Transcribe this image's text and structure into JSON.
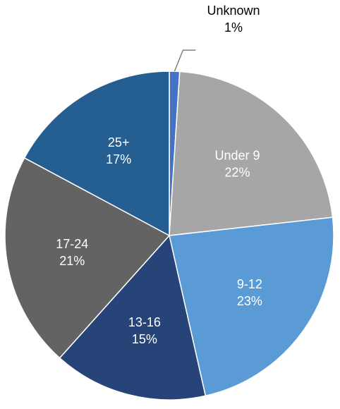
{
  "chart_data": {
    "type": "pie",
    "title": "",
    "start_angle_deg": 0,
    "direction": "clockwise",
    "slices": [
      {
        "label": "Unknown",
        "value": 1,
        "value_label": "1%",
        "color": "#4472C4",
        "label_placement": "outside-leader",
        "label_color": "#000000"
      },
      {
        "label": "Under 9",
        "value": 22,
        "value_label": "22%",
        "color": "#A6A6A6",
        "label_placement": "inside",
        "label_color": "#FFFFFF"
      },
      {
        "label": "9-12",
        "value": 23,
        "value_label": "23%",
        "color": "#5B9BD5",
        "label_placement": "inside",
        "label_color": "#FFFFFF"
      },
      {
        "label": "13-16",
        "value": 15,
        "value_label": "15%",
        "color": "#264478",
        "label_placement": "inside",
        "label_color": "#FFFFFF"
      },
      {
        "label": "17-24",
        "value": 21,
        "value_label": "21%",
        "color": "#636363",
        "label_placement": "inside",
        "label_color": "#FFFFFF"
      },
      {
        "label": "25+",
        "value": 17,
        "value_label": "17%",
        "color": "#255E91",
        "label_placement": "inside",
        "label_color": "#FFFFFF"
      }
    ],
    "border_color": "#FFFFFF",
    "leader_line_color": "#808080",
    "legend": "none"
  }
}
